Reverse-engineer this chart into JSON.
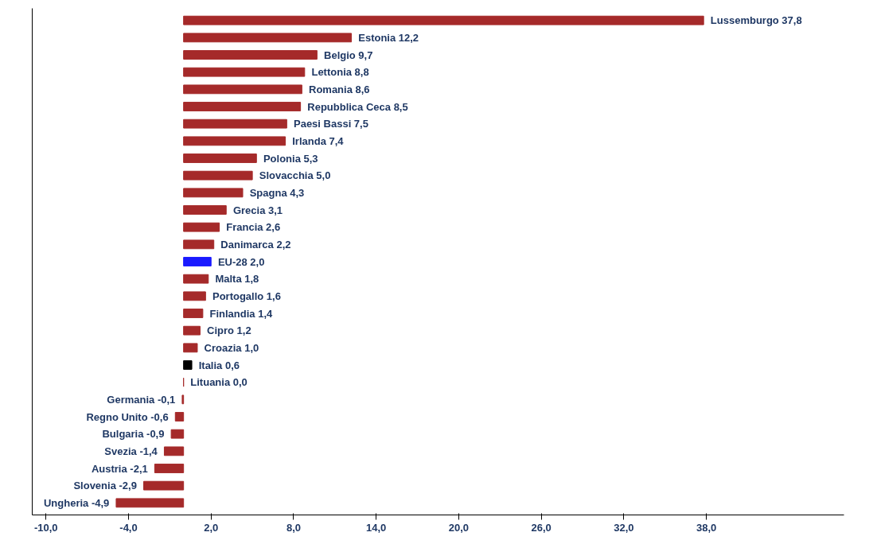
{
  "chart_data": {
    "type": "bar",
    "orientation": "horizontal",
    "categories": [
      "Lussemburgo",
      "Estonia",
      "Belgio",
      "Lettonia",
      "Romania",
      "Repubblica Ceca",
      "Paesi Bassi",
      "Irlanda",
      "Polonia",
      "Slovacchia",
      "Spagna",
      "Grecia",
      "Francia",
      "Danimarca",
      "EU-28",
      "Malta",
      "Portogallo",
      "Finlandia",
      "Cipro",
      "Croazia",
      "Italia",
      "Lituania",
      "Germania",
      "Regno Unito",
      "Bulgaria",
      "Svezia",
      "Austria",
      "Slovenia",
      "Ungheria"
    ],
    "values": [
      37.8,
      12.2,
      9.7,
      8.8,
      8.6,
      8.5,
      7.5,
      7.4,
      5.3,
      5.0,
      4.3,
      3.1,
      2.6,
      2.2,
      2.0,
      1.8,
      1.6,
      1.4,
      1.2,
      1.0,
      0.6,
      0.0,
      -0.1,
      -0.6,
      -0.9,
      -1.4,
      -2.1,
      -2.9,
      -4.9
    ],
    "value_labels": [
      "37,8",
      "12,2",
      "9,7",
      "8,8",
      "8,6",
      "8,5",
      "7,5",
      "7,4",
      "5,3",
      "5,0",
      "4,3",
      "3,1",
      "2,6",
      "2,2",
      "2,0",
      "1,8",
      "1,6",
      "1,4",
      "1,2",
      "1,0",
      "0,6",
      "0,0",
      "-0,1",
      "-0,6",
      "-0,9",
      "-1,4",
      "-2,1",
      "-2,9",
      "-4,9"
    ],
    "colors": [
      "#a52a2a",
      "#a52a2a",
      "#a52a2a",
      "#a52a2a",
      "#a52a2a",
      "#a52a2a",
      "#a52a2a",
      "#a52a2a",
      "#a52a2a",
      "#a52a2a",
      "#a52a2a",
      "#a52a2a",
      "#a52a2a",
      "#a52a2a",
      "#1a1aff",
      "#a52a2a",
      "#a52a2a",
      "#a52a2a",
      "#a52a2a",
      "#a52a2a",
      "#000000",
      "#a52a2a",
      "#a52a2a",
      "#a52a2a",
      "#a52a2a",
      "#a52a2a",
      "#a52a2a",
      "#a52a2a",
      "#a52a2a"
    ],
    "xlim": [
      -11,
      48
    ],
    "xticks": [
      {
        "value": -10,
        "label": "-10,0"
      },
      {
        "value": -4,
        "label": "-4,0"
      },
      {
        "value": 2,
        "label": "2,0"
      },
      {
        "value": 8,
        "label": "8,0"
      },
      {
        "value": 14,
        "label": "14,0"
      },
      {
        "value": 20,
        "label": "20,0"
      },
      {
        "value": 26,
        "label": "26,0"
      },
      {
        "value": 32,
        "label": "32,0"
      },
      {
        "value": 38,
        "label": "38,0"
      }
    ],
    "tick_labels": "x",
    "grid": false
  }
}
